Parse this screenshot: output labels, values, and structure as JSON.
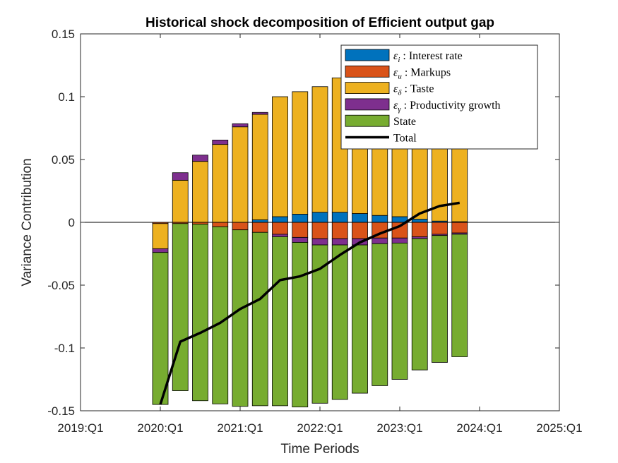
{
  "chart_data": {
    "type": "bar",
    "stacked": true,
    "title": "Historical shock decomposition of Efficient output gap",
    "xlabel": "Time Periods",
    "ylabel": "Variance Contribution",
    "ylim": [
      -0.15,
      0.15
    ],
    "yticks": [
      "-0.15",
      "-0.1",
      "-0.05",
      "0",
      "0.05",
      "0.1",
      "0.15"
    ],
    "xlim": [
      2019.0,
      2025.0
    ],
    "xticks": [
      "2019:Q1",
      "2020:Q1",
      "2021:Q1",
      "2022:Q1",
      "2023:Q1",
      "2024:Q1",
      "2025:Q1"
    ],
    "legend_position": "top-right",
    "x": [
      2020.0,
      2020.25,
      2020.5,
      2020.75,
      2021.0,
      2021.25,
      2021.5,
      2021.75,
      2022.0,
      2022.25,
      2022.5,
      2022.75,
      2023.0,
      2023.25,
      2023.5,
      2023.75
    ],
    "series": [
      {
        "name": "Interest rate",
        "legend_symbol": "ε",
        "legend_subscript": "i",
        "legend_text": " : Interest rate",
        "color": "#0072BD",
        "values": [
          0.0,
          0.0,
          0.0,
          0.0,
          0.0,
          0.002,
          0.0045,
          0.0065,
          0.008,
          0.008,
          0.007,
          0.0055,
          0.0045,
          0.0025,
          0.001,
          0.0005
        ]
      },
      {
        "name": "Markups",
        "legend_symbol": "ε",
        "legend_subscript": "u",
        "legend_text": " : Markups",
        "color": "#D95319",
        "values": [
          -0.001,
          -0.001,
          -0.0015,
          -0.0035,
          -0.006,
          -0.008,
          -0.0095,
          -0.012,
          -0.013,
          -0.013,
          -0.013,
          -0.0125,
          -0.0125,
          -0.0115,
          -0.0095,
          -0.0085
        ]
      },
      {
        "name": "Taste",
        "legend_symbol": "ε",
        "legend_subscript": "δ",
        "legend_text": " : Taste",
        "color": "#EDB120",
        "values": [
          -0.02,
          0.0335,
          0.0485,
          0.062,
          0.076,
          0.084,
          0.0955,
          0.0975,
          0.1,
          0.107,
          0.107,
          0.107,
          0.106,
          0.105,
          0.1045,
          0.105
        ]
      },
      {
        "name": "Productivity growth",
        "legend_symbol": "ε",
        "legend_subscript": "γ",
        "legend_text": " : Productivity growth",
        "color": "#7E2F8E",
        "values": [
          -0.003,
          0.006,
          0.005,
          0.0035,
          0.0025,
          0.0015,
          -0.002,
          -0.004,
          -0.005,
          -0.005,
          -0.005,
          -0.0045,
          -0.004,
          -0.0015,
          -0.001,
          -0.001
        ]
      },
      {
        "name": "State",
        "legend_symbol": "",
        "legend_subscript": "",
        "legend_text": "State",
        "color": "#77AC30",
        "values": [
          -0.121,
          -0.133,
          -0.1405,
          -0.141,
          -0.1405,
          -0.138,
          -0.1345,
          -0.131,
          -0.126,
          -0.123,
          -0.118,
          -0.113,
          -0.1085,
          -0.1045,
          -0.101,
          -0.0975
        ]
      }
    ],
    "total": {
      "name": "Total",
      "legend_text": "Total",
      "color": "#000000",
      "values": [
        -0.145,
        -0.095,
        -0.088,
        -0.08,
        -0.069,
        -0.061,
        -0.046,
        -0.043,
        -0.037,
        -0.026,
        -0.016,
        -0.009,
        -0.003,
        0.007,
        0.013,
        0.0155
      ]
    }
  }
}
